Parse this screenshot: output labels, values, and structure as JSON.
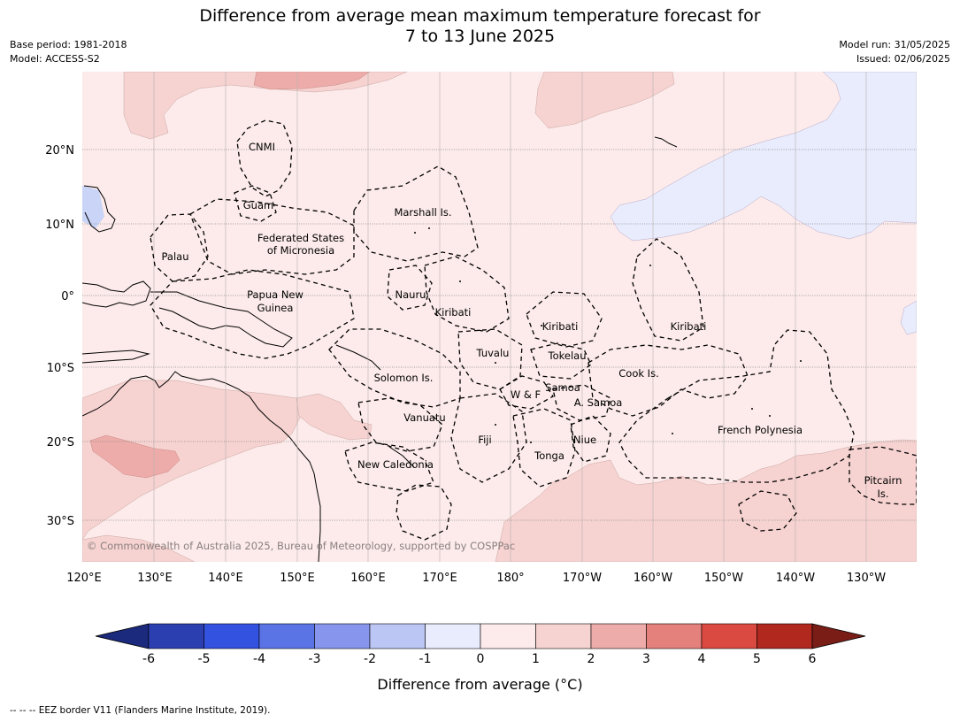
{
  "title": {
    "line1": "Difference from average mean maximum temperature forecast for",
    "line2": "7 to 13 June 2025"
  },
  "meta_left": {
    "base_period": "Base period: 1981-2018",
    "model": "Model: ACCESS-S2"
  },
  "meta_right": {
    "model_run": "Model run: 31/05/2025",
    "issued": "Issued: 02/06/2025"
  },
  "axes": {
    "lon_labels": [
      "120°E",
      "130°E",
      "140°E",
      "150°E",
      "160°E",
      "170°E",
      "180°",
      "170°W",
      "160°W",
      "150°W",
      "140°W",
      "130°W"
    ],
    "lat_labels": [
      "20°N",
      "10°N",
      "0°",
      "10°S",
      "20°S",
      "30°S"
    ]
  },
  "places": [
    {
      "name": "CNMI"
    },
    {
      "name": "Guam"
    },
    {
      "name": "Marshall Is."
    },
    {
      "name": "Federated States"
    },
    {
      "name": "of Micronesia"
    },
    {
      "name": "Palau"
    },
    {
      "name": "Papua New"
    },
    {
      "name": "Guinea"
    },
    {
      "name": "Nauru"
    },
    {
      "name": "Kiribati"
    },
    {
      "name": "Kiribati"
    },
    {
      "name": "Kiribati"
    },
    {
      "name": "Tuvalu"
    },
    {
      "name": "Tokelau"
    },
    {
      "name": "Solomon Is."
    },
    {
      "name": "Samoa"
    },
    {
      "name": "W & F"
    },
    {
      "name": "A. Samoa"
    },
    {
      "name": "Cook Is."
    },
    {
      "name": "Vanuatu"
    },
    {
      "name": "Fiji"
    },
    {
      "name": "Niue"
    },
    {
      "name": "Tonga"
    },
    {
      "name": "French Polynesia"
    },
    {
      "name": "New Caledonia"
    },
    {
      "name": "Pitcairn"
    },
    {
      "name": "Is."
    }
  ],
  "copyright": "© Commonwealth of Australia 2025, Bureau of Meteorology, supported by COSPPac",
  "colorbar": {
    "ticks": [
      "-6",
      "-5",
      "-4",
      "-3",
      "-2",
      "-1",
      "0",
      "1",
      "2",
      "3",
      "4",
      "5",
      "6"
    ],
    "colors": {
      "under": "#1b2a7c",
      "bins": [
        "#2b3fb0",
        "#3352e0",
        "#5a74e6",
        "#8796ec",
        "#bcc6f5",
        "#e8ecfc",
        "#fcebea",
        "#f6d3d1",
        "#edaca9",
        "#e5817c",
        "#db4a40",
        "#b0281e"
      ],
      "over": "#7a1d17"
    },
    "title": "Difference from average (°C)"
  },
  "footnote": "--  --  -- EEZ border V11 (Flanders Marine Institute, 2019)."
}
